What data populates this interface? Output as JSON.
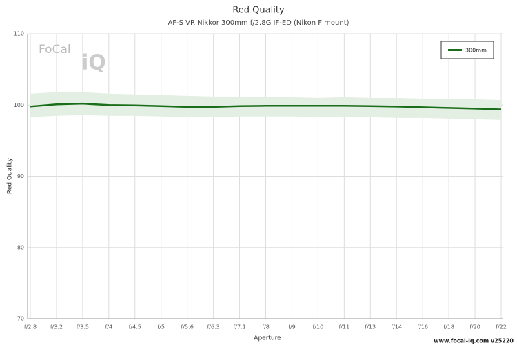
{
  "chart_data": {
    "type": "line",
    "title": "Red Quality",
    "subtitle": "AF-S VR Nikkor 300mm f/2.8G IF-ED (Nikon F mount)",
    "x_label": "Aperture",
    "y_label": "Red Quality",
    "footer": "www.focal-iq.com  v25220",
    "logo": [
      "FoCal",
      "iQ"
    ],
    "categories": [
      "f/2.8",
      "f/3.2",
      "f/3.5",
      "f/4",
      "f/4.5",
      "f/5",
      "f/5.6",
      "f/6.3",
      "f/7.1",
      "f/8",
      "f/9",
      "f/10",
      "f/11",
      "f/13",
      "f/14",
      "f/16",
      "f/18",
      "f/20",
      "f/22"
    ],
    "series": [
      {
        "name": "300mm",
        "color": "#1a6e1a",
        "values": [
          99.8,
          100.1,
          100.2,
          100.0,
          99.95,
          99.85,
          99.75,
          99.75,
          99.85,
          99.9,
          99.9,
          99.9,
          99.9,
          99.85,
          99.8,
          99.7,
          99.6,
          99.5,
          99.4
        ],
        "band": {
          "color": "#e3efe3",
          "upper": [
            101.6,
            101.8,
            101.8,
            101.6,
            101.5,
            101.4,
            101.3,
            101.2,
            101.2,
            101.1,
            101.1,
            101.0,
            101.1,
            101.0,
            101.0,
            100.9,
            100.8,
            100.8,
            100.7
          ],
          "lower": [
            98.3,
            98.5,
            98.6,
            98.5,
            98.5,
            98.4,
            98.3,
            98.3,
            98.4,
            98.4,
            98.4,
            98.3,
            98.3,
            98.3,
            98.2,
            98.2,
            98.1,
            98.0,
            97.9
          ]
        }
      }
    ],
    "ylim": [
      70,
      110
    ],
    "yticks": [
      70,
      80,
      90,
      100,
      110
    ],
    "grid": true,
    "legend": "top-right"
  }
}
